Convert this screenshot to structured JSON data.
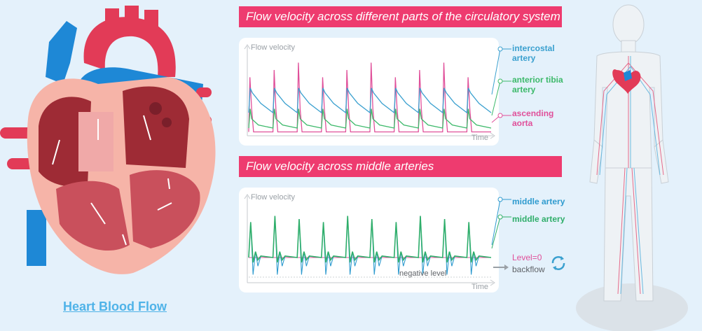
{
  "heart": {
    "title": "Heart Blood Flow"
  },
  "charts": {
    "top": {
      "banner": "Flow velocity across different parts of the circulatory system",
      "y_axis": "Flow velocity",
      "x_axis": "Time",
      "legend": [
        "intercostal artery",
        "anterior tibia artery",
        "ascending aorta"
      ]
    },
    "bottom": {
      "banner": "Flow velocity across middle arteries",
      "y_axis": "Flow velocity",
      "x_axis": "Time",
      "legend": [
        "middle artery",
        "middle artery"
      ],
      "level_label": "Level=0",
      "negative_label": "negative level",
      "backflow_label": "backflow"
    }
  },
  "colors": {
    "aorta": "#e0509a",
    "intercostal": "#3aa0cf",
    "tibia": "#3cb96a",
    "middle_a": "#2f9bcf",
    "middle_b": "#2fae6a",
    "banner": "#ee3b6f",
    "title_link": "#4fb3e8"
  },
  "chart_data": [
    {
      "type": "line",
      "title": "Flow velocity across different parts of the circulatory system",
      "xlabel": "Time",
      "ylabel": "Flow velocity",
      "beats": 10,
      "series": [
        {
          "name": "ascending aorta",
          "peak": 0.95,
          "baseline": 0.05
        },
        {
          "name": "intercostal artery",
          "peak": 0.62,
          "baseline": 0.3
        },
        {
          "name": "anterior tibia artery",
          "peak": 0.5,
          "baseline": 0.1
        }
      ]
    },
    {
      "type": "line",
      "title": "Flow velocity across middle arteries",
      "xlabel": "Time",
      "ylabel": "Flow velocity",
      "beats": 10,
      "series": [
        {
          "name": "middle artery",
          "peak": 0.85,
          "minimum": -0.35
        },
        {
          "name": "middle artery",
          "peak": 0.85,
          "minimum": -0.1
        }
      ]
    }
  ]
}
